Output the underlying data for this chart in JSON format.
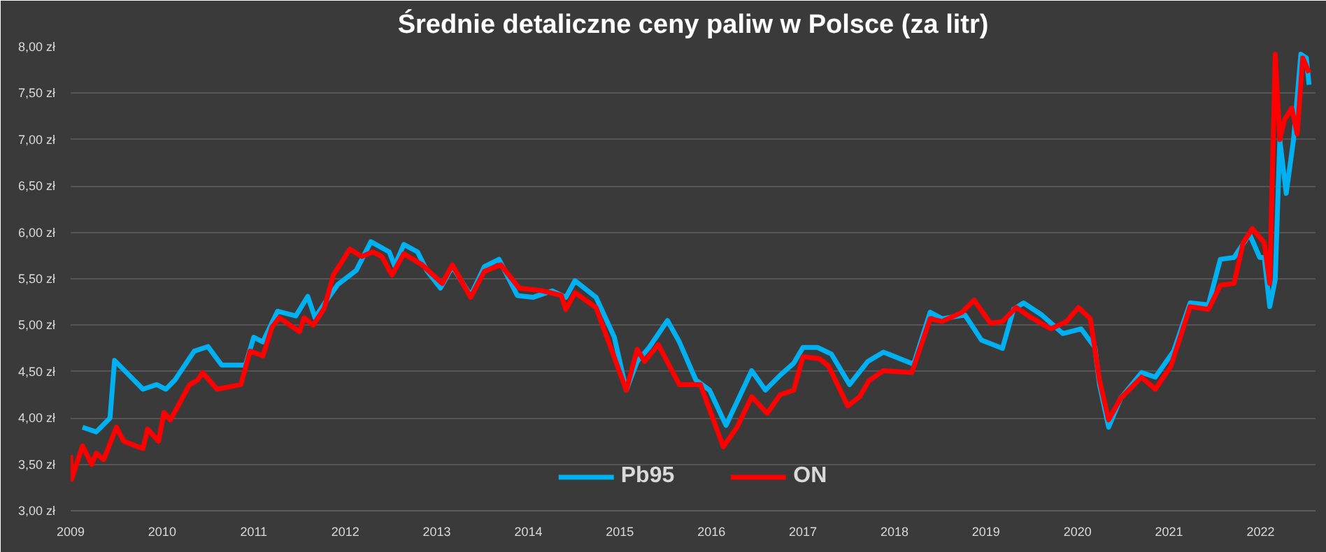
{
  "chart_data": {
    "type": "line",
    "title": "Średnie detaliczne ceny paliw w Polsce (za litr)",
    "xlim": [
      2009,
      2022.6
    ],
    "xticks": [
      2009,
      2010,
      2011,
      2012,
      2013,
      2014,
      2015,
      2016,
      2017,
      2018,
      2019,
      2020,
      2021,
      2022
    ],
    "ylim": [
      3,
      8
    ],
    "yticks": [
      {
        "value": 3,
        "label": "3,00 zł"
      },
      {
        "value": 3.5,
        "label": "3,50 zł"
      },
      {
        "value": 4,
        "label": "4,00 zł"
      },
      {
        "value": 4.5,
        "label": "4,50 zł"
      },
      {
        "value": 5,
        "label": "5,00 zł"
      },
      {
        "value": 5.5,
        "label": "5,50 zł"
      },
      {
        "value": 6,
        "label": "6,00 zł"
      },
      {
        "value": 6.5,
        "label": "6,50 zł"
      },
      {
        "value": 7,
        "label": "7,00 zł"
      },
      {
        "value": 7.5,
        "label": "7,50 zł"
      },
      {
        "value": 8,
        "label": "8,00 zł"
      }
    ],
    "grid": "y",
    "legend": "bottom",
    "line_style": "solid",
    "marker": "none",
    "series": [
      {
        "name": "Pb95",
        "color": "#00b0f0",
        "x": [
          2009.13,
          2009.28,
          2009.43,
          2009.48,
          2009.58,
          2009.79,
          2009.94,
          2010.04,
          2010.14,
          2010.35,
          2010.5,
          2010.65,
          2010.91,
          2011.0,
          2011.1,
          2011.26,
          2011.46,
          2011.59,
          2011.67,
          2011.77,
          2011.92,
          2012.12,
          2012.28,
          2012.48,
          2012.54,
          2012.64,
          2012.79,
          2012.89,
          2013.04,
          2013.17,
          2013.37,
          2013.52,
          2013.68,
          2013.88,
          2014.05,
          2014.26,
          2014.41,
          2014.51,
          2014.74,
          2014.94,
          2015.07,
          2015.19,
          2015.32,
          2015.52,
          2015.65,
          2015.83,
          2015.98,
          2016.16,
          2016.44,
          2016.59,
          2016.75,
          2016.9,
          2017.0,
          2017.16,
          2017.31,
          2017.51,
          2017.71,
          2017.88,
          2018.21,
          2018.39,
          2018.52,
          2018.77,
          2018.95,
          2019.18,
          2019.3,
          2019.41,
          2019.61,
          2019.84,
          2020.04,
          2020.19,
          2020.24,
          2020.34,
          2020.47,
          2020.7,
          2020.85,
          2021.05,
          2021.23,
          2021.43,
          2021.56,
          2021.71,
          2021.88,
          2021.99,
          2022.04,
          2022.1,
          2022.16,
          2022.21,
          2022.28,
          2022.36,
          2022.44,
          2022.5,
          2022.53
        ],
        "values": [
          3.9,
          3.85,
          4.0,
          4.62,
          4.52,
          4.31,
          4.36,
          4.31,
          4.41,
          4.72,
          4.77,
          4.57,
          4.57,
          4.87,
          4.82,
          5.15,
          5.1,
          5.31,
          5.08,
          5.23,
          5.44,
          5.59,
          5.9,
          5.79,
          5.64,
          5.87,
          5.79,
          5.59,
          5.4,
          5.63,
          5.32,
          5.63,
          5.71,
          5.32,
          5.3,
          5.37,
          5.3,
          5.48,
          5.3,
          4.87,
          4.3,
          4.61,
          4.76,
          5.05,
          4.82,
          4.41,
          4.3,
          3.92,
          4.51,
          4.3,
          4.46,
          4.59,
          4.76,
          4.76,
          4.69,
          4.36,
          4.61,
          4.71,
          4.58,
          5.14,
          5.07,
          5.11,
          4.84,
          4.75,
          5.17,
          5.24,
          5.11,
          4.91,
          4.96,
          4.76,
          4.36,
          3.9,
          4.21,
          4.49,
          4.44,
          4.72,
          5.24,
          5.22,
          5.71,
          5.73,
          5.98,
          5.73,
          5.73,
          5.2,
          5.49,
          7.0,
          6.42,
          7.0,
          7.92,
          7.88,
          7.59
        ]
      },
      {
        "name": "ON",
        "color": "#ff0000",
        "x": [
          2009.0,
          2009.01,
          2009.13,
          2009.23,
          2009.28,
          2009.36,
          2009.5,
          2009.58,
          2009.79,
          2009.84,
          2009.96,
          2010.02,
          2010.09,
          2010.3,
          2010.39,
          2010.44,
          2010.6,
          2010.86,
          2010.96,
          2011.1,
          2011.2,
          2011.28,
          2011.5,
          2011.55,
          2011.65,
          2011.77,
          2011.87,
          2012.05,
          2012.18,
          2012.3,
          2012.4,
          2012.51,
          2012.64,
          2012.84,
          2013.06,
          2013.17,
          2013.37,
          2013.52,
          2013.7,
          2013.9,
          2014.16,
          2014.36,
          2014.41,
          2014.51,
          2014.74,
          2015.07,
          2015.19,
          2015.27,
          2015.42,
          2015.65,
          2015.88,
          2016.13,
          2016.28,
          2016.44,
          2016.61,
          2016.75,
          2016.9,
          2017.0,
          2017.18,
          2017.28,
          2017.49,
          2017.62,
          2017.72,
          2017.88,
          2018.19,
          2018.39,
          2018.52,
          2018.74,
          2018.87,
          2019.05,
          2019.18,
          2019.33,
          2019.48,
          2019.71,
          2019.88,
          2020.01,
          2020.14,
          2020.24,
          2020.34,
          2020.47,
          2020.7,
          2020.85,
          2021.02,
          2021.23,
          2021.43,
          2021.56,
          2021.71,
          2021.81,
          2021.91,
          2022.04,
          2022.1,
          2022.16,
          2022.21,
          2022.26,
          2022.34,
          2022.4,
          2022.46,
          2022.53
        ],
        "values": [
          3.6,
          3.34,
          3.7,
          3.5,
          3.62,
          3.55,
          3.9,
          3.75,
          3.67,
          3.88,
          3.75,
          4.06,
          3.98,
          4.36,
          4.41,
          4.49,
          4.31,
          4.36,
          4.72,
          4.67,
          4.98,
          5.08,
          4.93,
          5.08,
          5.0,
          5.18,
          5.54,
          5.82,
          5.74,
          5.79,
          5.74,
          5.54,
          5.77,
          5.65,
          5.45,
          5.65,
          5.3,
          5.58,
          5.65,
          5.4,
          5.37,
          5.32,
          5.17,
          5.35,
          5.19,
          4.3,
          4.74,
          4.61,
          4.79,
          4.36,
          4.36,
          3.69,
          3.9,
          4.23,
          4.05,
          4.25,
          4.3,
          4.66,
          4.64,
          4.56,
          4.13,
          4.23,
          4.4,
          4.51,
          4.49,
          5.07,
          5.04,
          5.14,
          5.27,
          5.02,
          5.04,
          5.19,
          5.09,
          4.96,
          5.04,
          5.19,
          5.07,
          4.41,
          3.98,
          4.21,
          4.44,
          4.31,
          4.56,
          5.2,
          5.17,
          5.43,
          5.45,
          5.89,
          6.04,
          5.89,
          5.45,
          7.92,
          7.0,
          7.21,
          7.34,
          7.06,
          7.88,
          7.72
        ]
      }
    ]
  }
}
